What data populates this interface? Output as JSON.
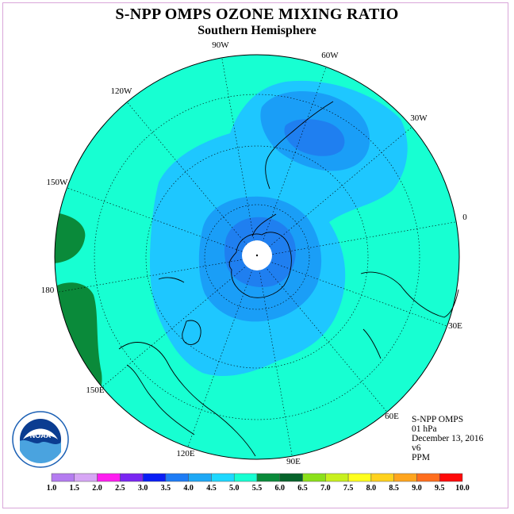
{
  "header": {
    "title": "S-NPP OMPS OZONE MIXING RATIO",
    "subtitle": "Southern Hemisphere"
  },
  "map": {
    "projection": "south-polar-stereographic",
    "longitude_labels": [
      "90W",
      "60W",
      "30W",
      "0",
      "30E",
      "60E",
      "90E",
      "120E",
      "150E",
      "180",
      "150W",
      "120W"
    ]
  },
  "logo": {
    "text": "NOAA"
  },
  "info": {
    "instrument": "S-NPP OMPS",
    "level": "01 hPa",
    "date": "December 13, 2016",
    "version": "v6",
    "units": "PPM"
  },
  "colorbar": {
    "labels": [
      "1.0",
      "1.5",
      "2.0",
      "2.5",
      "3.0",
      "3.5",
      "4.0",
      "4.5",
      "5.0",
      "5.5",
      "6.0",
      "6.5",
      "7.0",
      "7.5",
      "8.0",
      "8.5",
      "9.0",
      "9.5",
      "10.0"
    ],
    "colors": [
      "#b47cf0",
      "#d7a6f5",
      "#ff1ef0",
      "#7a26f2",
      "#0a1ef5",
      "#1e7cf5",
      "#1ea8f5",
      "#1ed8ff",
      "#17ffd2",
      "#0a8a3a",
      "#06632a",
      "#8be01a",
      "#c8f01e",
      "#ffff1e",
      "#ffd21e",
      "#ffa51e",
      "#ff6e1e",
      "#ff0a0a",
      "#8a4a2a"
    ]
  }
}
